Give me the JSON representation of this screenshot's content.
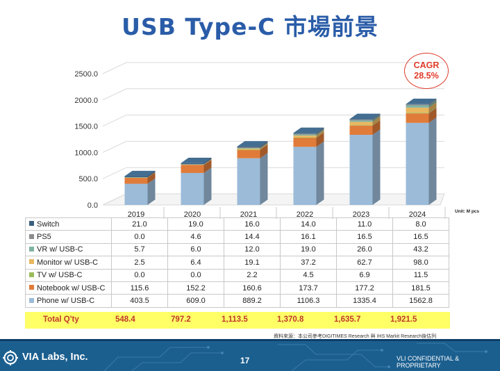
{
  "title": "USB Type-C 市場前景",
  "cagr": {
    "label": "CAGR",
    "value": "28.5%"
  },
  "unit": "Unit: M pcs",
  "chart_data": {
    "type": "bar",
    "stacked": true,
    "categories": [
      "2019",
      "2020",
      "2021",
      "2022",
      "2023",
      "2024"
    ],
    "y_ticks": [
      "0.0",
      "500.0",
      "1000.0",
      "1500.0",
      "2000.0",
      "2500.0"
    ],
    "ylim": [
      0,
      2500
    ],
    "series": [
      {
        "name": "Switch",
        "color": "#3a5f7e",
        "values": [
          21.0,
          19.0,
          16.0,
          14.0,
          11.0,
          8.0
        ],
        "labels": [
          "21.0",
          "19.0",
          "16.0",
          "14.0",
          "11.0",
          "8.0"
        ]
      },
      {
        "name": "PS5",
        "color": "#8d8d8d",
        "values": [
          0.0,
          4.6,
          14.4,
          16.1,
          16.5,
          16.5
        ],
        "labels": [
          "0.0",
          "4.6",
          "14.4",
          "16.1",
          "16.5",
          "16.5"
        ]
      },
      {
        "name": "VR w/ USB-C",
        "color": "#7fb3a4",
        "values": [
          5.7,
          6.0,
          12.0,
          19.0,
          26.0,
          43.2
        ],
        "labels": [
          "5.7",
          "6.0",
          "12.0",
          "19.0",
          "26.0",
          "43.2"
        ]
      },
      {
        "name": "Monitor w/ USB-C",
        "color": "#e8b860",
        "values": [
          2.5,
          6.4,
          19.1,
          37.2,
          62.7,
          98.0
        ],
        "labels": [
          "2.5",
          "6.4",
          "19.1",
          "37.2",
          "62.7",
          "98.0"
        ]
      },
      {
        "name": "TV w/ USB-C",
        "color": "#9bbb59",
        "values": [
          0.0,
          0.0,
          2.2,
          4.5,
          6.9,
          11.5
        ],
        "labels": [
          "0.0",
          "0.0",
          "2.2",
          "4.5",
          "6.9",
          "11.5"
        ]
      },
      {
        "name": "Notebook w/ USB-C",
        "color": "#e07b3a",
        "values": [
          115.6,
          152.2,
          160.6,
          173.7,
          177.2,
          181.5
        ],
        "labels": [
          "115.6",
          "152.2",
          "160.6",
          "173.7",
          "177.2",
          "181.5"
        ]
      },
      {
        "name": "Phone w/ USB-C",
        "color": "#9bbbd9",
        "values": [
          403.5,
          609.0,
          889.2,
          1106.3,
          1335.4,
          1562.8
        ],
        "labels": [
          "403.5",
          "609.0",
          "889.2",
          "1106.3",
          "1335.4",
          "1562.8"
        ]
      }
    ],
    "total": {
      "label": "Total Q'ty",
      "values": [
        "548.4",
        "797.2",
        "1,113.5",
        "1,370.8",
        "1,635.7",
        "1,921.5"
      ]
    }
  },
  "source": "資料來源：本公司參考DIGITIMES Research 與 IHS Markit Research後估列",
  "footer": {
    "company": "VIA Labs, Inc.",
    "page": "17",
    "confidential": "VLI CONFIDENTIAL & PROPRIETARY"
  }
}
